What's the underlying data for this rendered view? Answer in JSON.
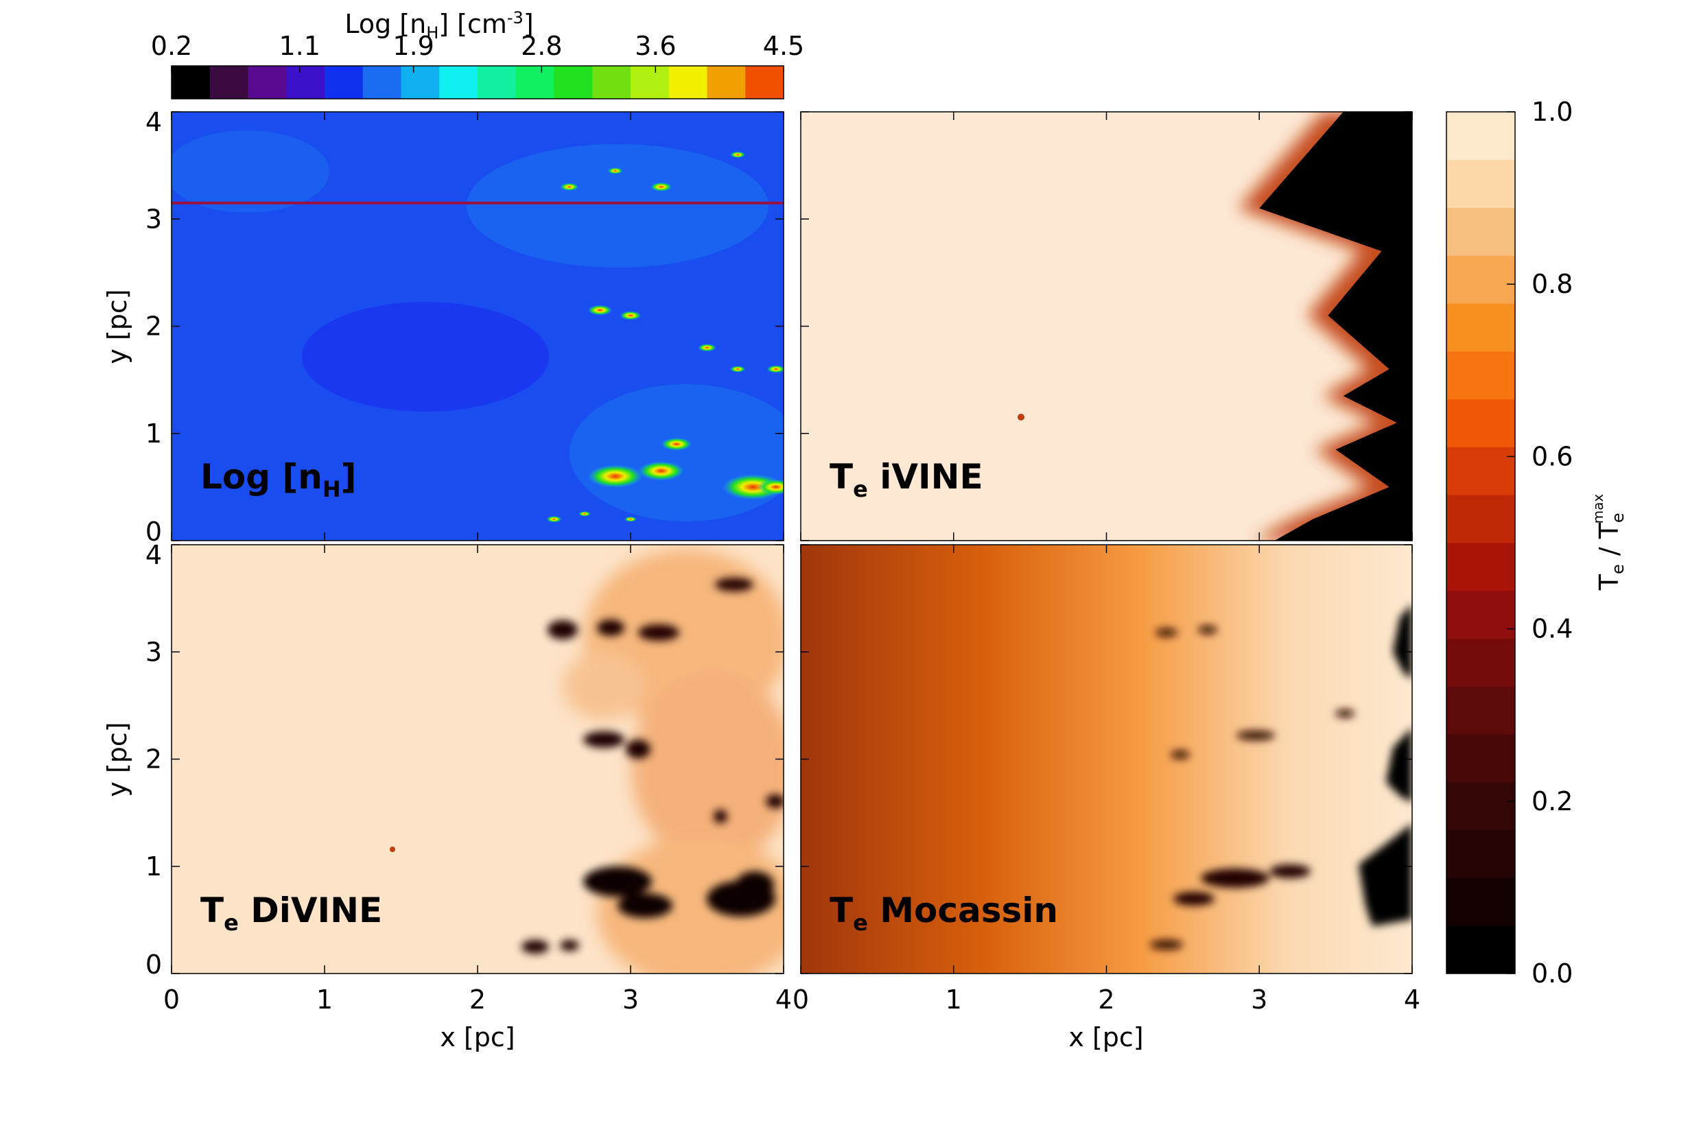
{
  "chart_data": [
    {
      "type": "heatmap",
      "name": "density",
      "label_main": "Log [n",
      "label_sub": "H",
      "label_end": "]",
      "xlim": [
        0,
        4
      ],
      "ylim": [
        0,
        4
      ],
      "xticks": [
        "0",
        "1",
        "2",
        "3",
        "4"
      ],
      "yticks": [
        "0",
        "1",
        "2",
        "3",
        "4"
      ],
      "ylabel": "y [pc]",
      "horizontal_line_y": 3.15,
      "clumps": [
        {
          "x": 2.9,
          "y": 0.6,
          "r": 0.18
        },
        {
          "x": 3.2,
          "y": 0.65,
          "r": 0.15
        },
        {
          "x": 3.8,
          "y": 0.5,
          "r": 0.2
        },
        {
          "x": 3.95,
          "y": 0.5,
          "r": 0.12
        },
        {
          "x": 3.3,
          "y": 0.9,
          "r": 0.1
        },
        {
          "x": 2.8,
          "y": 2.15,
          "r": 0.08
        },
        {
          "x": 3.0,
          "y": 2.1,
          "r": 0.07
        },
        {
          "x": 3.5,
          "y": 1.8,
          "r": 0.06
        },
        {
          "x": 3.95,
          "y": 1.6,
          "r": 0.06
        },
        {
          "x": 3.7,
          "y": 1.6,
          "r": 0.05
        },
        {
          "x": 2.6,
          "y": 3.3,
          "r": 0.06
        },
        {
          "x": 2.9,
          "y": 3.45,
          "r": 0.05
        },
        {
          "x": 3.2,
          "y": 3.3,
          "r": 0.07
        },
        {
          "x": 3.7,
          "y": 3.6,
          "r": 0.05
        },
        {
          "x": 2.5,
          "y": 0.2,
          "r": 0.05
        },
        {
          "x": 2.7,
          "y": 0.25,
          "r": 0.04
        },
        {
          "x": 3.0,
          "y": 0.2,
          "r": 0.04
        }
      ]
    },
    {
      "type": "heatmap",
      "name": "ivine",
      "label_main": "T",
      "label_sub": "e",
      "label_end": " iVINE",
      "xlim": [
        0,
        4
      ],
      "ylim": [
        0,
        4
      ],
      "front_x": [
        3.55,
        3.0,
        3.8,
        3.45,
        3.85,
        3.55,
        3.9,
        3.5,
        3.85,
        3.35,
        3.1
      ],
      "front_y": [
        4.0,
        3.1,
        2.7,
        2.1,
        1.6,
        1.35,
        1.1,
        0.85,
        0.5,
        0.2,
        0.0
      ]
    },
    {
      "type": "heatmap",
      "name": "divine",
      "label_main": "T",
      "label_sub": "e",
      "label_end": " DiVINE",
      "xlim": [
        0,
        4
      ],
      "ylim": [
        0,
        4
      ],
      "xticks": [
        "0",
        "1",
        "2",
        "3",
        "4"
      ],
      "yticks": [
        "0",
        "1",
        "2",
        "3",
        "4"
      ],
      "xlabel": "x [pc]",
      "ylabel": "y [pc]"
    },
    {
      "type": "heatmap",
      "name": "mocassin",
      "label_main": "T",
      "label_sub": "e",
      "label_end": " Mocassin",
      "xlim": [
        0,
        4
      ],
      "ylim": [
        0,
        4
      ],
      "xticks": [
        "0",
        "1",
        "2",
        "3",
        "4"
      ],
      "xlabel": "x [pc]"
    }
  ],
  "colorbar_density": {
    "label_main": "Log [n",
    "label_sub": "H",
    "label_mid": "] [cm",
    "label_sup": "-3",
    "label_end": "]",
    "ticks": [
      "0.2",
      "1.1",
      "1.9",
      "2.8",
      "3.6",
      "4.5"
    ],
    "tick_values": [
      0.2,
      1.1,
      1.9,
      2.8,
      3.6,
      4.5
    ],
    "range": [
      0.2,
      4.5
    ],
    "colors": [
      "#000000",
      "#3a0a40",
      "#5a0a90",
      "#3a10c8",
      "#1030f0",
      "#1a6cf0",
      "#10b0f0",
      "#10f0f0",
      "#10f0a0",
      "#10f060",
      "#20e020",
      "#70e010",
      "#b0f010",
      "#f0f000",
      "#f0a000",
      "#f05000"
    ]
  },
  "colorbar_temperature": {
    "label_main": "T",
    "label_sub": "e",
    "label_mid": " / T",
    "label_sub2": "e",
    "label_sup2": "max",
    "ticks": [
      "0.0",
      "0.2",
      "0.4",
      "0.6",
      "0.8",
      "1.0"
    ],
    "tick_values": [
      0.0,
      0.2,
      0.4,
      0.6,
      0.8,
      1.0
    ],
    "range": [
      0.0,
      1.0
    ],
    "colors": [
      "#000000",
      "#140202",
      "#240404",
      "#340606",
      "#480808",
      "#5c0a0a",
      "#740c0c",
      "#900e0e",
      "#a81408",
      "#c02808",
      "#d83c08",
      "#f05808",
      "#f87410",
      "#f89020",
      "#f8a850",
      "#f8c080",
      "#fcd8a8",
      "#fde8cc"
    ]
  }
}
